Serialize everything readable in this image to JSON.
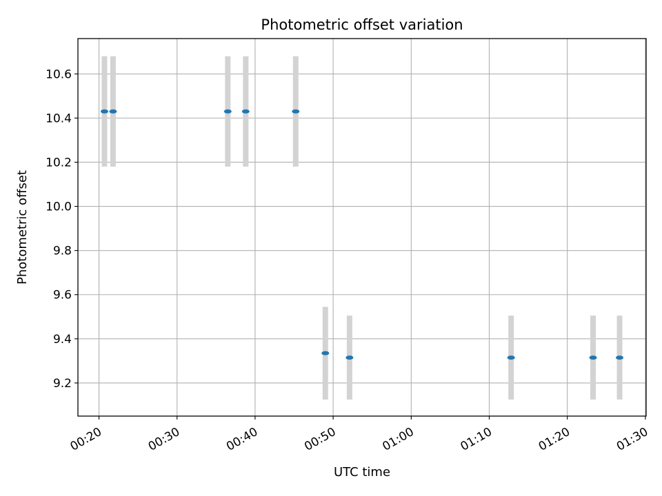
{
  "chart_data": {
    "type": "scatter",
    "title": "Photometric offset variation",
    "xlabel": "UTC time",
    "ylabel": "Photometric offset",
    "x_axis_format": "time HH:MM",
    "xlim": [
      "00:17:18",
      "01:30:06"
    ],
    "ylim": [
      9.05,
      10.76
    ],
    "xticks": [
      "00:20",
      "00:30",
      "00:40",
      "00:50",
      "01:00",
      "01:10",
      "01:20",
      "01:30"
    ],
    "yticks": [
      "9.2",
      "9.4",
      "9.6",
      "9.8",
      "10.0",
      "10.2",
      "10.4",
      "10.6"
    ],
    "grid": true,
    "marker_color": "#1f77b4",
    "errorbar_color": "#d3d3d3",
    "points": [
      {
        "time": "00:20:42",
        "value": 10.43,
        "err": 0.25
      },
      {
        "time": "00:21:48",
        "value": 10.43,
        "err": 0.25
      },
      {
        "time": "00:36:30",
        "value": 10.43,
        "err": 0.25
      },
      {
        "time": "00:38:48",
        "value": 10.43,
        "err": 0.25
      },
      {
        "time": "00:45:12",
        "value": 10.43,
        "err": 0.25
      },
      {
        "time": "00:49:00",
        "value": 9.335,
        "err": 0.21
      },
      {
        "time": "00:52:06",
        "value": 9.315,
        "err": 0.19
      },
      {
        "time": "01:12:48",
        "value": 9.315,
        "err": 0.19
      },
      {
        "time": "01:23:18",
        "value": 9.315,
        "err": 0.19
      },
      {
        "time": "01:26:42",
        "value": 9.315,
        "err": 0.19
      }
    ]
  }
}
